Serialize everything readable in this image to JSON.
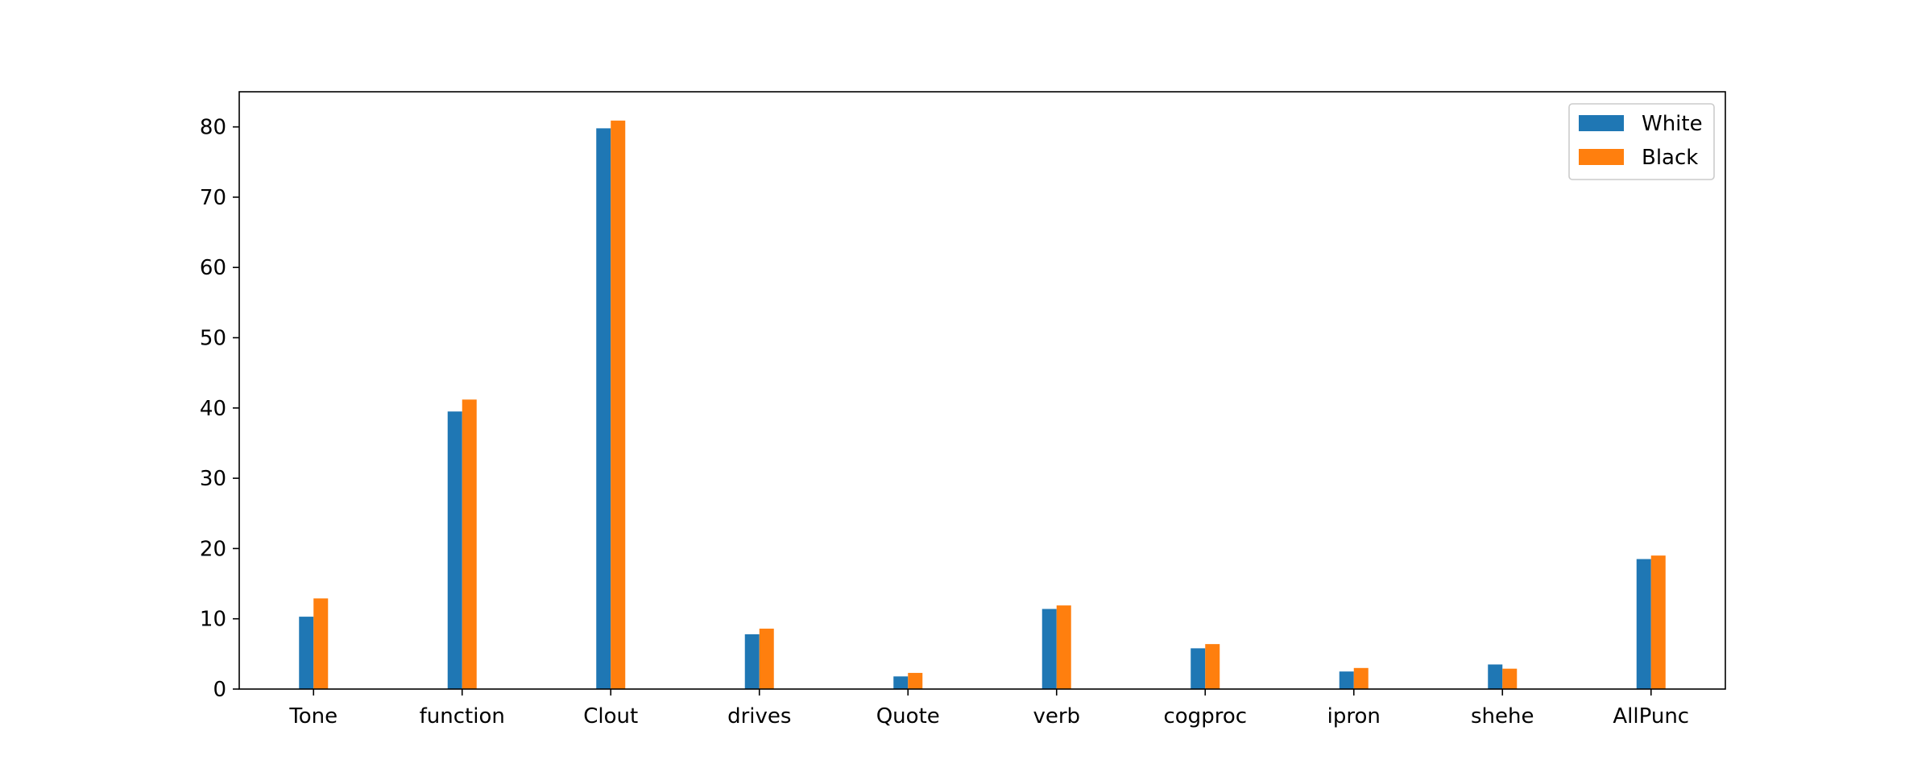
{
  "chart_data": {
    "type": "bar",
    "title": "",
    "xlabel": "",
    "ylabel": "",
    "categories": [
      "Tone",
      "function",
      "Clout",
      "drives",
      "Quote",
      "verb",
      "cogproc",
      "ipron",
      "shehe",
      "AllPunc"
    ],
    "series": [
      {
        "name": "White",
        "color": "#1f77b4",
        "values": [
          10.3,
          39.5,
          79.8,
          7.8,
          1.8,
          11.4,
          5.8,
          2.5,
          3.5,
          18.5
        ]
      },
      {
        "name": "Black",
        "color": "#ff7f0e",
        "values": [
          12.9,
          41.2,
          80.9,
          8.6,
          2.3,
          11.9,
          6.4,
          3.0,
          2.9,
          19.0
        ]
      }
    ],
    "ylim": [
      0,
      85
    ],
    "yticks": [
      0,
      10,
      20,
      30,
      40,
      50,
      60,
      70,
      80
    ],
    "grid": false,
    "legend": "top-right"
  }
}
